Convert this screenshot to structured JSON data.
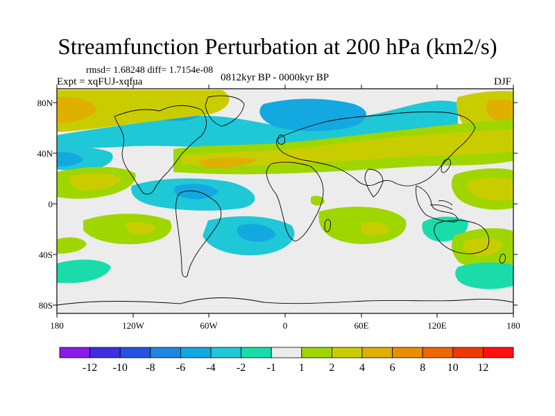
{
  "header": {
    "title": "Streamfunction Perturbation at 200 hPa (km2/s)",
    "stats": "rmsd= 1.68248 diff= 1.7154e-08",
    "experiment": "Expt = xqFUJ-xqfua",
    "period": "0812kyr BP - 0000kyr BP",
    "season": "DJF"
  },
  "axes": {
    "lon_labels": [
      "180",
      "120W",
      "60W",
      "0",
      "60E",
      "120E",
      "180"
    ],
    "lat_labels": [
      "80N",
      "40N",
      "0",
      "40S",
      "80S"
    ]
  },
  "colorbar": {
    "labels": [
      "-12",
      "-10",
      "-8",
      "-6",
      "-4",
      "-2",
      "-1",
      "1",
      "2",
      "4",
      "6",
      "8",
      "10",
      "12"
    ],
    "colors": [
      "#8a1be6",
      "#3f2ee0",
      "#2553e0",
      "#1f86e0",
      "#14a8e0",
      "#1fc8d6",
      "#19dcaa",
      "#ececec",
      "#9fd600",
      "#c9cd00",
      "#e0b000",
      "#e88e00",
      "#ee6600",
      "#ee3a00",
      "#ff1010"
    ]
  },
  "field_colors": {
    "background": "#ececec",
    "neg1": "#19dcaa",
    "neg2": "#1fc8d6",
    "neg3": "#14a8e0",
    "pos1": "#9fd600",
    "pos2": "#c9cd00",
    "pos3": "#e0b000",
    "coast": "#000000"
  }
}
